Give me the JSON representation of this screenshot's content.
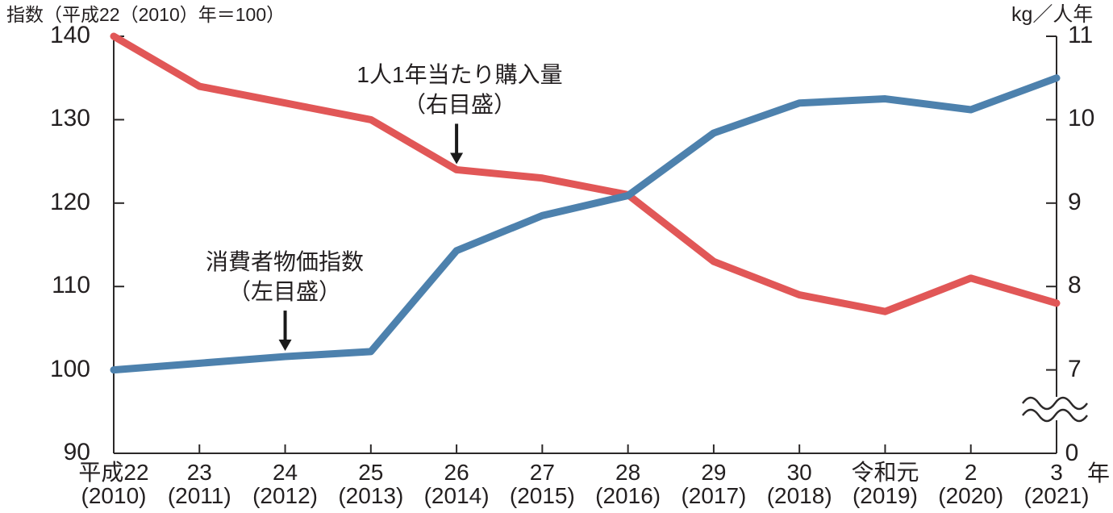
{
  "chart_data": {
    "type": "line",
    "title_left_axis": "指数（平成22（2010）年＝100）",
    "title_right_axis": "kg／人年",
    "x_unit_label": "年",
    "x_era": [
      "平成22",
      "23",
      "24",
      "25",
      "26",
      "27",
      "28",
      "29",
      "30",
      "令和元",
      "2",
      "3"
    ],
    "x_west": [
      "(2010)",
      "(2011)",
      "(2012)",
      "(2013)",
      "(2014)",
      "(2015)",
      "(2016)",
      "(2017)",
      "(2018)",
      "(2019)",
      "(2020)",
      "(2021)"
    ],
    "left_axis": {
      "ticks": [
        140,
        130,
        120,
        110,
        100,
        90
      ],
      "max": 140,
      "min": 90
    },
    "right_axis": {
      "ticks": [
        11,
        10,
        9,
        8,
        7
      ],
      "zero_label": "0",
      "axis_break": true
    },
    "grid": false,
    "series": [
      {
        "id": "cpi",
        "name": "消費者物価指数（左目盛）",
        "axis": "left",
        "color": "#4d81ad",
        "values": [
          100,
          100.8,
          101.6,
          102.2,
          114.3,
          118.5,
          120.9,
          128.4,
          132.0,
          132.5,
          131.2,
          135.0
        ]
      },
      {
        "id": "purchase",
        "name": "1人1年当たり購入量（右目盛）",
        "axis": "right",
        "color": "#e15757",
        "values": [
          11.0,
          10.4,
          10.2,
          10.0,
          9.4,
          9.3,
          9.1,
          8.3,
          7.9,
          7.7,
          8.1,
          7.8
        ]
      }
    ]
  },
  "annotations": {
    "purchase": {
      "line1": "1人1年当たり購入量",
      "line2": "（右目盛）",
      "series": "purchase",
      "x_index": 4
    },
    "cpi": {
      "line1": "消費者物価指数",
      "line2": "（左目盛）",
      "series": "cpi",
      "x_index": 2
    }
  }
}
